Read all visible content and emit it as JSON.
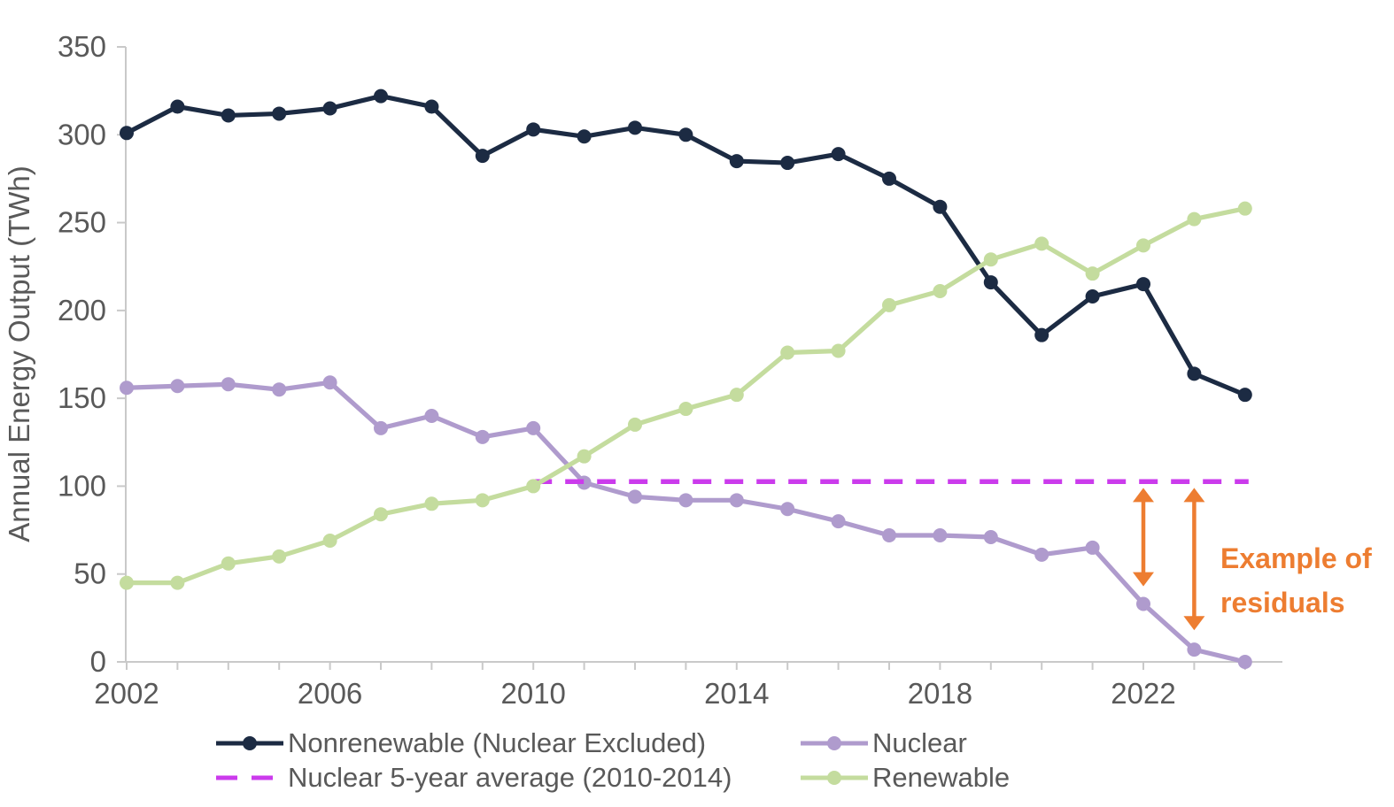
{
  "page": {
    "background": "#ffffff",
    "text_color": "#595959",
    "axis_color": "#c9c9c9"
  },
  "chart_data": {
    "type": "line",
    "title": "",
    "xlabel": "",
    "ylabel": "Annual Energy Output (TWh)",
    "ylim": [
      0,
      350
    ],
    "ytick_step": 50,
    "yticks": [
      0,
      50,
      100,
      150,
      200,
      250,
      300,
      350
    ],
    "x": [
      2002,
      2003,
      2004,
      2005,
      2006,
      2007,
      2008,
      2009,
      2010,
      2011,
      2012,
      2013,
      2014,
      2015,
      2016,
      2017,
      2018,
      2019,
      2020,
      2021,
      2022,
      2023,
      2024
    ],
    "xticks_labeled": [
      2002,
      2006,
      2010,
      2014,
      2018,
      2022
    ],
    "grid": false,
    "legend_position": "bottom",
    "series": [
      {
        "name": "Nonrenewable (Nuclear Excluded)",
        "color": "#1c2b43",
        "style": "solid",
        "marker": "circle",
        "values": [
          301,
          316,
          311,
          312,
          315,
          322,
          316,
          288,
          303,
          299,
          304,
          300,
          285,
          284,
          289,
          275,
          259,
          216,
          186,
          208,
          215,
          164,
          152
        ]
      },
      {
        "name": "Nuclear",
        "color": "#af9bcd",
        "style": "solid",
        "marker": "circle",
        "values": [
          156,
          157,
          158,
          155,
          159,
          133,
          140,
          128,
          133,
          102,
          94,
          92,
          92,
          87,
          80,
          72,
          72,
          71,
          61,
          65,
          33,
          7,
          0
        ]
      },
      {
        "name": "Renewable",
        "color": "#c4dc9e",
        "style": "solid",
        "marker": "circle",
        "values": [
          45,
          45,
          56,
          60,
          69,
          84,
          90,
          92,
          100,
          117,
          135,
          144,
          152,
          176,
          177,
          203,
          211,
          229,
          238,
          221,
          237,
          252,
          258
        ]
      },
      {
        "name": "Nuclear 5-year average (2010-2014)",
        "color": "#cb3bec",
        "style": "dashed",
        "marker": "none",
        "value": 102.6,
        "x_range": [
          2010,
          2024
        ]
      }
    ],
    "annotation": {
      "text_lines": [
        "Example of",
        "residuals"
      ],
      "color": "#ed7d31",
      "arrows": [
        {
          "year": 2022,
          "value_top": 99,
          "value_bottom": 43
        },
        {
          "year": 2023,
          "value_top": 99,
          "value_bottom": 18
        }
      ]
    }
  }
}
